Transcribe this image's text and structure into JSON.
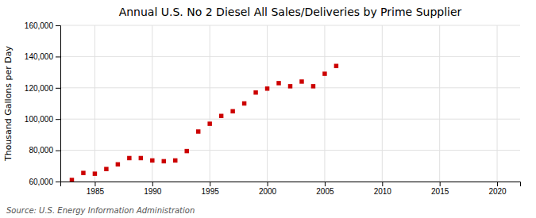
{
  "chart_data": {
    "type": "scatter",
    "title": "Annual U.S. No 2 Diesel All Sales/Deliveries by Prime Supplier",
    "ylabel": "Thousand Gallons per Day",
    "source": "Source: U.S. Energy Information Administration",
    "x": [
      1983,
      1984,
      1985,
      1986,
      1987,
      1988,
      1989,
      1990,
      1991,
      1992,
      1993,
      1994,
      1995,
      1996,
      1997,
      1998,
      1999,
      2000,
      2001,
      2002,
      2003,
      2004,
      2005,
      2006
    ],
    "values": [
      61000,
      65500,
      65000,
      68000,
      71000,
      75000,
      75000,
      73500,
      73000,
      73500,
      79500,
      92000,
      97000,
      102000,
      105000,
      110000,
      117000,
      119500,
      123000,
      121000,
      124000,
      121000,
      129000,
      134000
    ],
    "color": "#cc0000",
    "marker": "square",
    "xlim": [
      1982,
      2022
    ],
    "xticks": [
      1985,
      1990,
      1995,
      2000,
      2005,
      2010,
      2015,
      2020
    ],
    "ylim": [
      60000,
      160000
    ],
    "yticks": [
      {
        "value": 60000,
        "label": "60,000"
      },
      {
        "value": 80000,
        "label": "80,000"
      },
      {
        "value": 100000,
        "label": "100,000"
      },
      {
        "value": 120000,
        "label": "120,000"
      },
      {
        "value": 140000,
        "label": "140,000"
      },
      {
        "value": 160000,
        "label": "160,000"
      }
    ],
    "grid": true
  }
}
